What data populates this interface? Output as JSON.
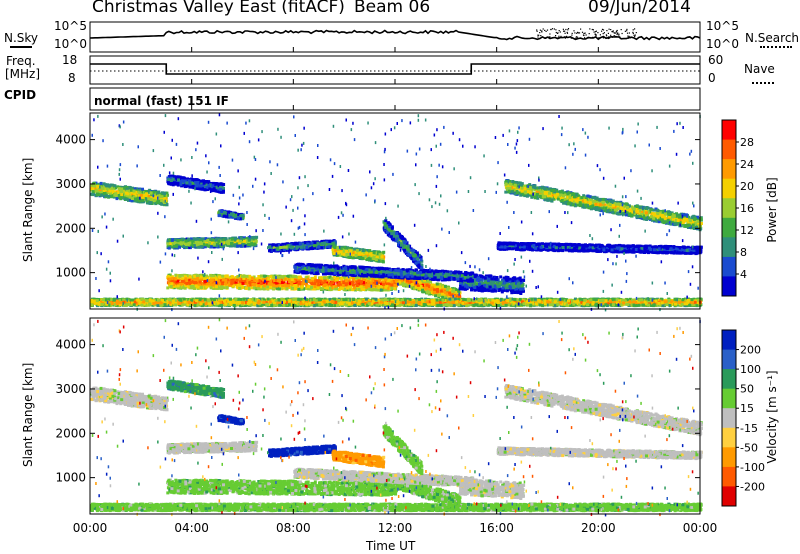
{
  "header": {
    "station": "Christmas Valley East (fitACF)",
    "beam": "Beam 06",
    "date": "09/Jun/2014"
  },
  "top_panels": {
    "nsky_label": "N.Sky",
    "nsearch_label": "N.Search",
    "freq_label_line1": "Freq.",
    "freq_label_line2": "[MHz]",
    "nave_label": "Nave",
    "cpid_label": "CPID",
    "cpid_value": "normal (fast) 151 IF",
    "noise_left_ticks": [
      "10^5",
      "10^0"
    ],
    "noise_right_ticks": [
      "10^5",
      "10^0"
    ],
    "freq_left_ticks": [
      "18",
      "8"
    ],
    "nave_right_ticks": [
      "60",
      "0"
    ]
  },
  "colors": {
    "power_scale": [
      "#0000d0",
      "#1a4bd0",
      "#2f8f7a",
      "#3faa3f",
      "#9acd32",
      "#f4d000",
      "#ff9a00",
      "#ff5a00",
      "#ff0000"
    ],
    "velocity_scale": [
      "#0020c0",
      "#2a60c8",
      "#2a9a5a",
      "#66cc33",
      "#bfbfbf",
      "#ffd040",
      "#ff9a00",
      "#ff5a00",
      "#e00000"
    ]
  },
  "chart_data": [
    {
      "type": "heatmap",
      "title": "",
      "xlabel": "Time UT",
      "ylabel": "Slant Range [km]",
      "x_ticks": [
        "00:00",
        "04:00",
        "08:00",
        "12:00",
        "16:00",
        "20:00",
        "00:00"
      ],
      "y_ticks": [
        "1000",
        "2000",
        "3000",
        "4000"
      ],
      "xlim_hours": [
        0,
        24
      ],
      "ylim_km": [
        180,
        4600
      ],
      "colorbar_label": "Power [dB]",
      "colorbar_ticks": [
        "4",
        "8",
        "12",
        "16",
        "20",
        "24",
        "28"
      ],
      "colorbar_range": [
        0,
        30
      ]
    },
    {
      "type": "heatmap",
      "title": "",
      "xlabel": "Time UT",
      "ylabel": "Slant Range [km]",
      "x_ticks": [
        "00:00",
        "04:00",
        "08:00",
        "12:00",
        "16:00",
        "20:00",
        "00:00"
      ],
      "y_ticks": [
        "1000",
        "2000",
        "3000",
        "4000"
      ],
      "xlim_hours": [
        0,
        24
      ],
      "ylim_km": [
        180,
        4600
      ],
      "colorbar_label": "Velocity [m s⁻¹]",
      "colorbar_ticks": [
        "200",
        "100",
        "50",
        "15",
        "-15",
        "-50",
        "-100",
        "-200"
      ],
      "colorbar_range": [
        -250,
        250
      ]
    }
  ]
}
